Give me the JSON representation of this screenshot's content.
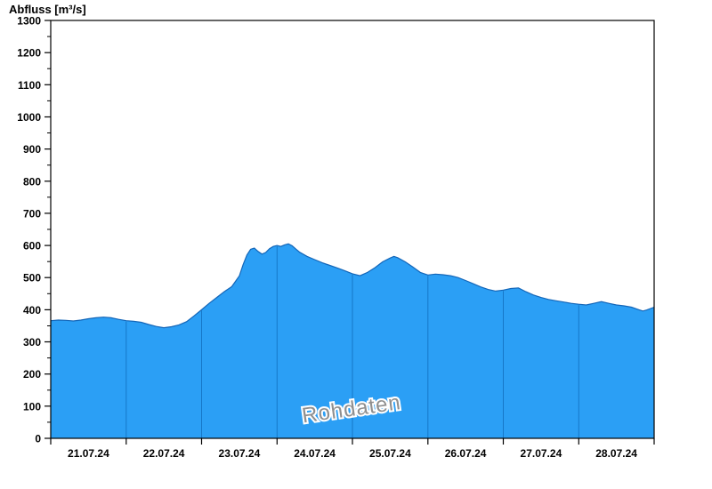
{
  "page": {
    "title": "Abfluss [m³/s]"
  },
  "watermark": "Rohdaten",
  "colors": {
    "fill": "#2b9ff5",
    "line": "#1466b8",
    "separator": "#1677c8",
    "axis": "#000000",
    "background": "#ffffff",
    "watermark_fill": "#8f8f8f",
    "watermark_halo": "#ffffff"
  },
  "chart_data": {
    "type": "area",
    "title": "",
    "ylabel": "Abfluss [m³/s]",
    "xlabel": "",
    "ylim": [
      0,
      1300
    ],
    "y_tick_step": 100,
    "y_ticks": [
      0,
      100,
      200,
      300,
      400,
      500,
      600,
      700,
      800,
      900,
      1000,
      1100,
      1200,
      1300
    ],
    "x_range_days": [
      0,
      8
    ],
    "x_axis_dates": [
      "21.07.24",
      "22.07.24",
      "23.07.24",
      "24.07.24",
      "25.07.24",
      "26.07.24",
      "27.07.24",
      "28.07.24"
    ],
    "legend_position": "none",
    "grid": "vertical day-boundary separators drawn inside filled area only",
    "series": [
      {
        "name": "Rohdaten",
        "unit": "m³/s",
        "x_days_since_21_07_24": [
          0,
          0.1,
          0.2,
          0.3,
          0.4,
          0.5,
          0.6,
          0.7,
          0.8,
          0.9,
          1.0,
          1.1,
          1.2,
          1.3,
          1.4,
          1.5,
          1.6,
          1.7,
          1.8,
          1.9,
          2.0,
          2.1,
          2.2,
          2.3,
          2.4,
          2.5,
          2.55,
          2.6,
          2.65,
          2.7,
          2.75,
          2.8,
          2.85,
          2.9,
          2.95,
          3.0,
          3.05,
          3.1,
          3.15,
          3.2,
          3.25,
          3.3,
          3.4,
          3.5,
          3.6,
          3.7,
          3.8,
          3.9,
          4.0,
          4.1,
          4.2,
          4.3,
          4.4,
          4.5,
          4.55,
          4.6,
          4.7,
          4.8,
          4.9,
          5.0,
          5.1,
          5.2,
          5.3,
          5.4,
          5.5,
          5.6,
          5.7,
          5.8,
          5.9,
          6.0,
          6.1,
          6.2,
          6.3,
          6.4,
          6.5,
          6.6,
          6.7,
          6.8,
          6.9,
          7.0,
          7.1,
          7.2,
          7.3,
          7.4,
          7.5,
          7.6,
          7.7,
          7.8,
          7.85,
          7.9,
          8.0
        ],
        "values": [
          366,
          368,
          367,
          365,
          368,
          372,
          375,
          377,
          375,
          370,
          366,
          364,
          361,
          354,
          348,
          344,
          347,
          353,
          363,
          381,
          400,
          420,
          438,
          456,
          472,
          505,
          540,
          570,
          588,
          592,
          581,
          573,
          578,
          590,
          597,
          600,
          597,
          602,
          605,
          599,
          589,
          579,
          566,
          556,
          546,
          538,
          530,
          521,
          512,
          506,
          516,
          531,
          549,
          561,
          566,
          562,
          549,
          533,
          516,
          508,
          511,
          509,
          506,
          500,
          491,
          481,
          471,
          463,
          458,
          461,
          466,
          468,
          456,
          446,
          438,
          432,
          428,
          424,
          420,
          417,
          415,
          420,
          425,
          420,
          415,
          412,
          408,
          400,
          396,
          399,
          408
        ]
      }
    ]
  }
}
